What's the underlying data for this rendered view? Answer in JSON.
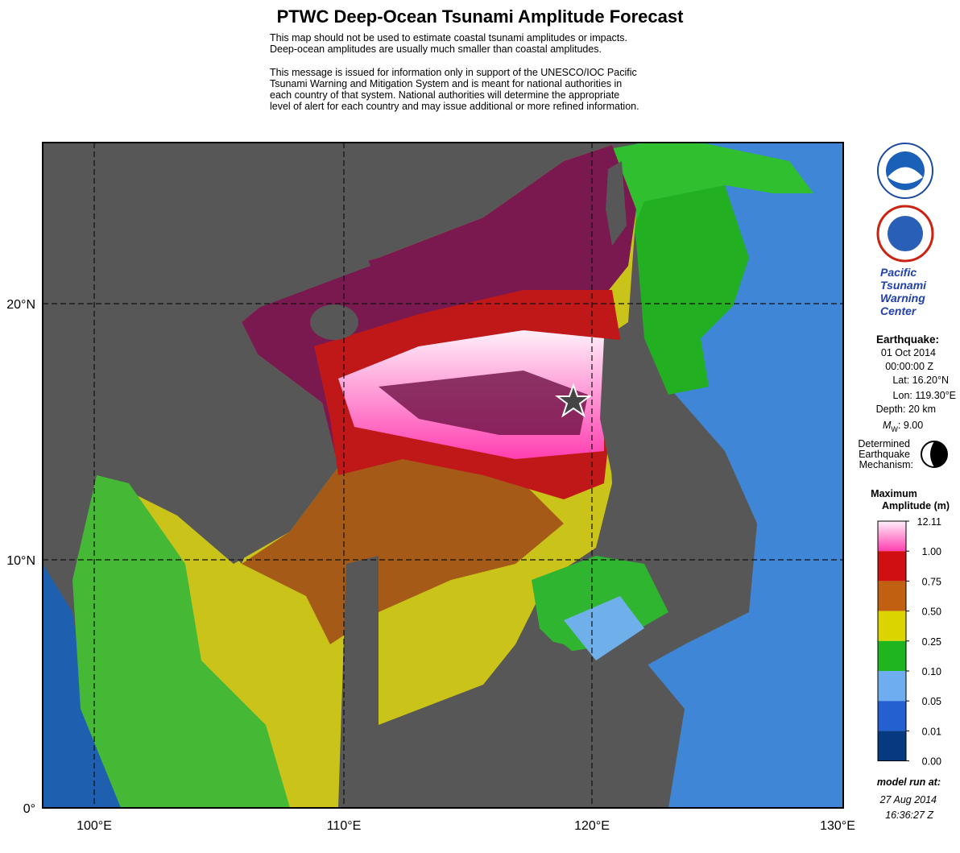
{
  "header": {
    "title": "PTWC Deep-Ocean Tsunami Amplitude Forecast",
    "disclaimer": [
      "This map should not be used to estimate coastal tsunami amplitudes or impacts.",
      "Deep-ocean amplitudes are usually much smaller than coastal amplitudes."
    ],
    "notice": [
      "This message is issued for information only in support of the UNESCO/IOC Pacific",
      "Tsunami Warning and Mitigation System and is meant for national authorities in",
      "each country of that system. National authorities will determine the appropriate",
      "level of alert for each country and may issue additional or more refined information."
    ]
  },
  "map": {
    "lon_labels": [
      "100°E",
      "110°E",
      "120°E",
      "130°E"
    ],
    "lat_labels": [
      "0°",
      "10°N",
      "20°N"
    ]
  },
  "sidebar": {
    "center": [
      "Pacific",
      "Tsunami",
      "Warning",
      "Center"
    ],
    "earthquake": {
      "heading": "Earthquake:",
      "date": "01 Oct 2014",
      "time": "00:00:00 Z",
      "lat": "Lat: 16.20°N",
      "lon": "Lon: 119.30°E",
      "depth": "Depth: 20 km",
      "magnitude_symbol": "M",
      "magnitude_sub": "W",
      "magnitude_value": ": 9.00"
    },
    "mechanism": [
      "Determined",
      "Earthquake",
      "Mechanism:"
    ],
    "legend": {
      "title": [
        "Maximum",
        "Amplitude (m)"
      ],
      "levels": [
        "12.11",
        "1.00",
        "0.75",
        "0.50",
        "0.25",
        "0.10",
        "0.05",
        "0.01",
        "0.00"
      ]
    },
    "model_run": [
      "model run at:",
      "27 Aug 2014",
      "16:36:27 Z"
    ]
  }
}
